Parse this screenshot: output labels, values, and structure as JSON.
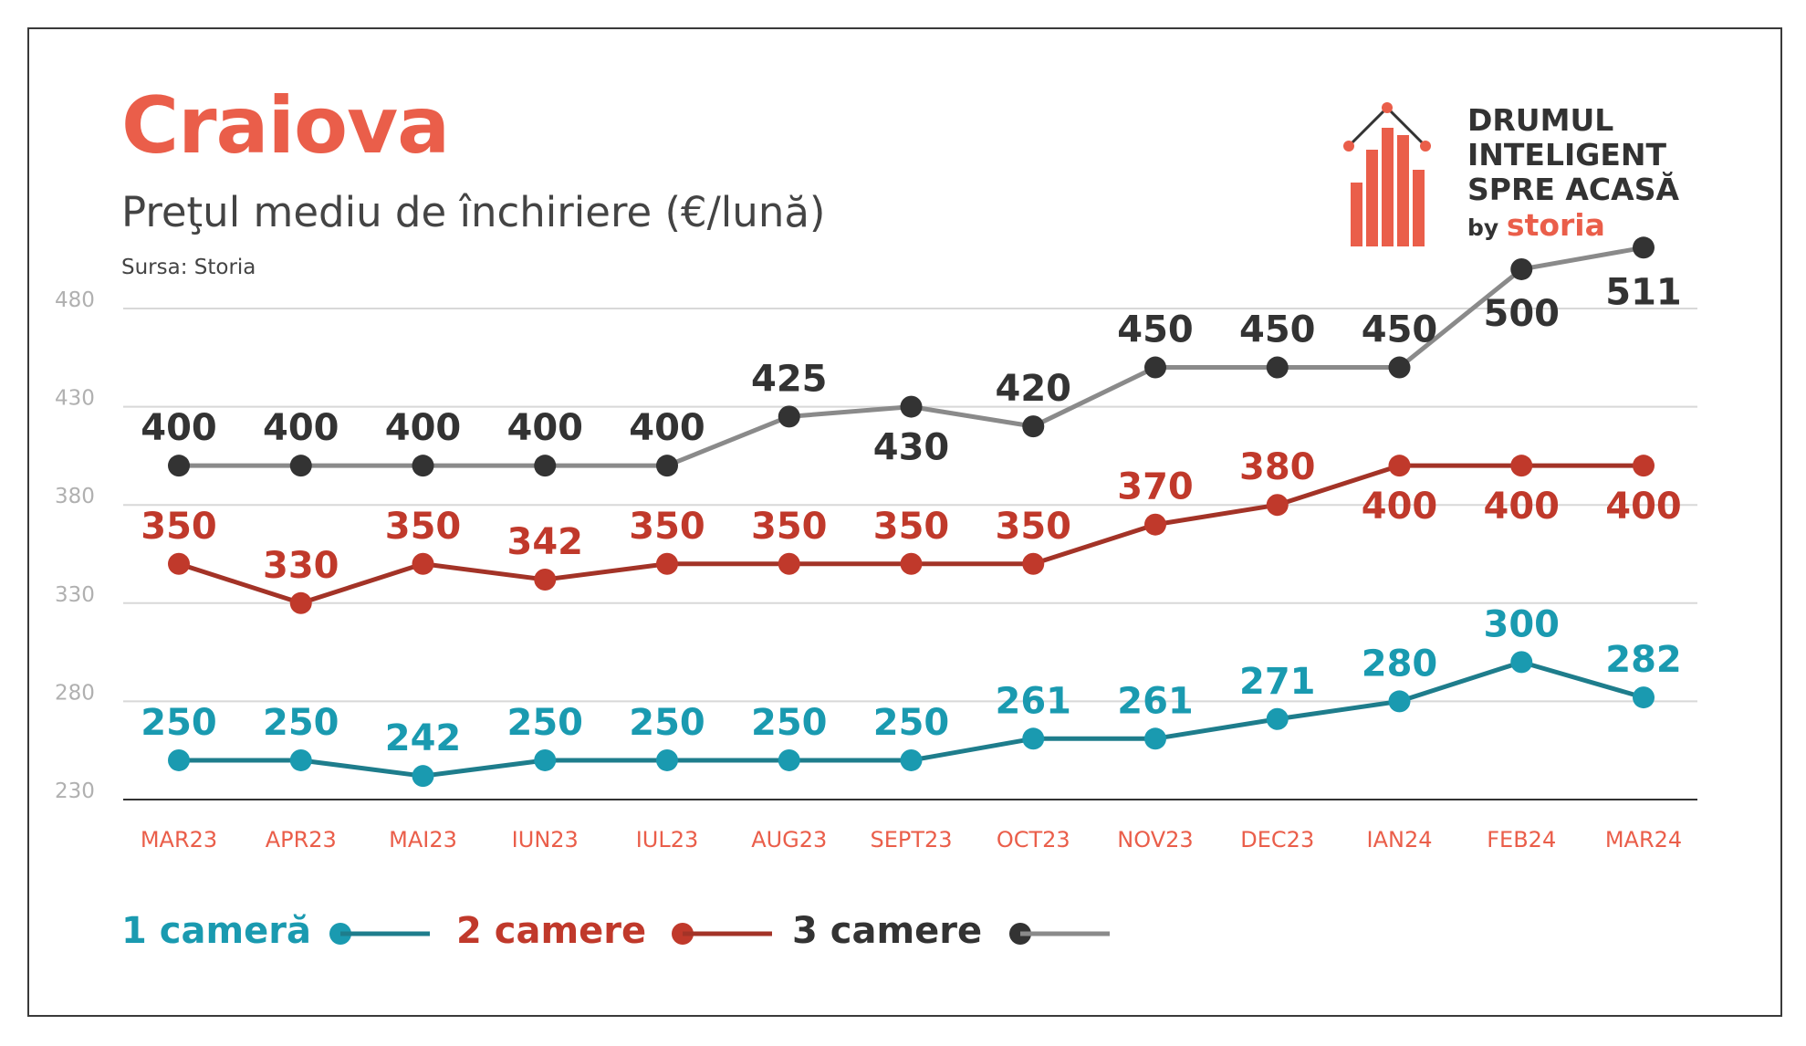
{
  "header": {
    "title": "Craiova",
    "subtitle": "Preţul mediu de închiriere (€/lună)",
    "source": "Sursa: Storia"
  },
  "logo": {
    "line1": "DRUMUL",
    "line2": "INTELIGENT",
    "line3": "SPRE ACASĂ",
    "by": "by",
    "brand": "storia"
  },
  "colors": {
    "accent": "#ea5e4a",
    "series_1": "#1a9ab0",
    "series_1_line": "#1e7d8c",
    "series_2": "#c0392b",
    "series_2_line": "#a33327",
    "series_3": "#333333",
    "series_3_line": "#8a8a8a",
    "axis_ticks": "#b0b0b0",
    "category_labels": "#ea5e4a",
    "grid": "#d8d8d8"
  },
  "chart_data": {
    "type": "line",
    "title": "Craiova",
    "subtitle": "Preţul mediu de închiriere (€/lună)",
    "categories": [
      "MAR23",
      "APR23",
      "MAI23",
      "IUN23",
      "IUL23",
      "AUG23",
      "SEPT23",
      "OCT23",
      "NOV23",
      "DEC23",
      "IAN24",
      "FEB24",
      "MAR24"
    ],
    "ylim": [
      230,
      480
    ],
    "yticks": [
      230,
      280,
      330,
      380,
      430,
      480
    ],
    "grid": true,
    "legend_position": "bottom-left",
    "series": [
      {
        "name": "1 cameră",
        "values": [
          250,
          250,
          242,
          250,
          250,
          250,
          250,
          261,
          261,
          271,
          280,
          300,
          282
        ]
      },
      {
        "name": "2 camere",
        "values": [
          350,
          330,
          350,
          342,
          350,
          350,
          350,
          350,
          370,
          380,
          400,
          400,
          400
        ]
      },
      {
        "name": "3 camere",
        "values": [
          400,
          400,
          400,
          400,
          400,
          425,
          430,
          420,
          450,
          450,
          450,
          500,
          511
        ]
      }
    ]
  }
}
